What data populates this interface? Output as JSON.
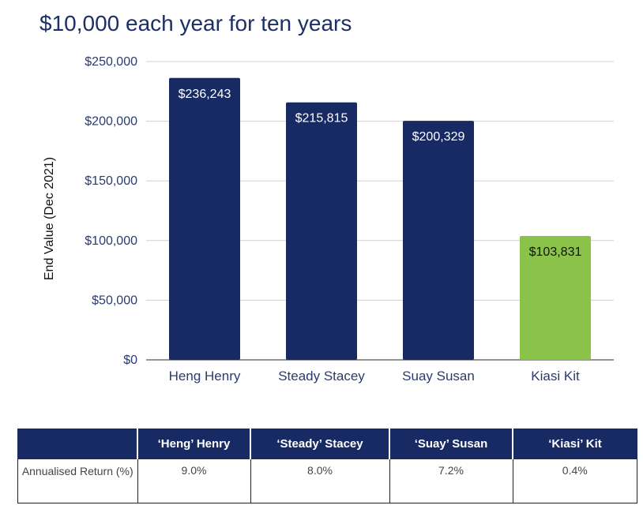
{
  "chart_data": {
    "type": "bar",
    "title": "$10,000 each year for ten years",
    "xlabel": "",
    "ylabel": "End Value (Dec 2021)",
    "ylim": [
      0,
      250000
    ],
    "yticks": [
      0,
      50000,
      100000,
      150000,
      200000,
      250000
    ],
    "ytick_labels": [
      "$0",
      "$50,000",
      "$100,000",
      "$150,000",
      "$200,000",
      "$250,000"
    ],
    "grid": true,
    "categories": [
      "Heng Henry",
      "Steady Stacey",
      "Suay Susan",
      "Kiasi Kit"
    ],
    "values": [
      236243,
      215815,
      200329,
      103831
    ],
    "data_labels": [
      "$236,243",
      "$215,815",
      "$200,329",
      "$103,831"
    ],
    "colors": [
      "#172a63",
      "#172a63",
      "#172a63",
      "#8bc34a"
    ],
    "label_colors": [
      "#ffffff",
      "#ffffff",
      "#ffffff",
      "#111111"
    ]
  },
  "table": {
    "headers": [
      "",
      "‘Heng’ Henry",
      "‘Steady’ Stacey",
      "‘Suay’ Susan",
      "‘Kiasi’ Kit"
    ],
    "row_label": "Annualised Return (%)",
    "values": [
      "9.0%",
      "8.0%",
      "7.2%",
      "0.4%"
    ]
  }
}
